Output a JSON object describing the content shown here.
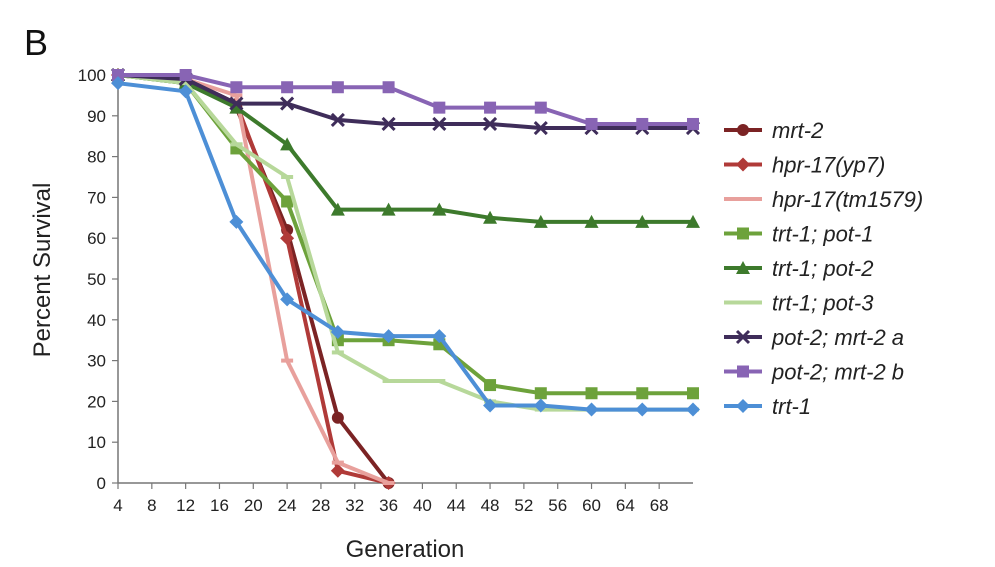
{
  "panel_label": "B",
  "chart_data": {
    "type": "line",
    "xlabel": "Generation",
    "ylabel": "Percent Survival",
    "xlim": [
      4,
      72
    ],
    "ylim": [
      0,
      100
    ],
    "x_ticks": [
      4,
      8,
      12,
      16,
      20,
      24,
      28,
      32,
      36,
      40,
      44,
      48,
      52,
      56,
      60,
      64,
      68
    ],
    "y_ticks": [
      0,
      10,
      20,
      30,
      40,
      50,
      60,
      70,
      80,
      90,
      100
    ],
    "grid": false,
    "legend_position": "right",
    "series": [
      {
        "name": "mrt-2",
        "color": "#7b2324",
        "marker": "circle",
        "points": [
          [
            4,
            100
          ],
          [
            12,
            99
          ],
          [
            18,
            92
          ],
          [
            24,
            62
          ],
          [
            30,
            16
          ],
          [
            36,
            0
          ]
        ]
      },
      {
        "name": "hpr-17(yp7)",
        "color": "#b03a38",
        "marker": "diamond",
        "points": [
          [
            4,
            100
          ],
          [
            12,
            99
          ],
          [
            18,
            93
          ],
          [
            24,
            60
          ],
          [
            30,
            3
          ],
          [
            36,
            0
          ]
        ]
      },
      {
        "name": "hpr-17(tm1579)",
        "color": "#e8a09c",
        "marker": "dash",
        "points": [
          [
            4,
            100
          ],
          [
            12,
            99
          ],
          [
            18,
            95
          ],
          [
            24,
            30
          ],
          [
            30,
            5
          ],
          [
            36,
            0
          ]
        ]
      },
      {
        "name": "trt-1; pot-1",
        "color": "#6da23b",
        "marker": "square",
        "points": [
          [
            4,
            100
          ],
          [
            12,
            98
          ],
          [
            18,
            82
          ],
          [
            24,
            69
          ],
          [
            30,
            35
          ],
          [
            36,
            35
          ],
          [
            42,
            34
          ],
          [
            48,
            24
          ],
          [
            54,
            22
          ],
          [
            60,
            22
          ],
          [
            66,
            22
          ],
          [
            72,
            22
          ]
        ]
      },
      {
        "name": "trt-1; pot-2",
        "color": "#3d7a2c",
        "marker": "triangle",
        "points": [
          [
            4,
            100
          ],
          [
            12,
            98
          ],
          [
            18,
            92
          ],
          [
            24,
            83
          ],
          [
            30,
            67
          ],
          [
            36,
            67
          ],
          [
            42,
            67
          ],
          [
            48,
            65
          ],
          [
            54,
            64
          ],
          [
            60,
            64
          ],
          [
            66,
            64
          ],
          [
            72,
            64
          ]
        ]
      },
      {
        "name": "trt-1; pot-3",
        "color": "#b7d89a",
        "marker": "dash",
        "points": [
          [
            4,
            100
          ],
          [
            12,
            98
          ],
          [
            18,
            83
          ],
          [
            24,
            75
          ],
          [
            30,
            32
          ],
          [
            36,
            25
          ],
          [
            42,
            25
          ],
          [
            48,
            20
          ],
          [
            54,
            18
          ],
          [
            60,
            18
          ],
          [
            66,
            18
          ],
          [
            72,
            18
          ]
        ]
      },
      {
        "name": "pot-2; mrt-2 a",
        "color": "#3f2d5a",
        "marker": "x",
        "points": [
          [
            4,
            100
          ],
          [
            12,
            99
          ],
          [
            18,
            93
          ],
          [
            24,
            93
          ],
          [
            30,
            89
          ],
          [
            36,
            88
          ],
          [
            42,
            88
          ],
          [
            48,
            88
          ],
          [
            54,
            87
          ],
          [
            60,
            87
          ],
          [
            66,
            87
          ],
          [
            72,
            87
          ]
        ]
      },
      {
        "name": "pot-2; mrt-2 b",
        "color": "#8864b4",
        "marker": "square",
        "points": [
          [
            4,
            100
          ],
          [
            12,
            100
          ],
          [
            18,
            97
          ],
          [
            24,
            97
          ],
          [
            30,
            97
          ],
          [
            36,
            97
          ],
          [
            42,
            92
          ],
          [
            48,
            92
          ],
          [
            54,
            92
          ],
          [
            60,
            88
          ],
          [
            66,
            88
          ],
          [
            72,
            88
          ]
        ]
      },
      {
        "name": "trt-1",
        "color": "#4d8fd6",
        "marker": "diamond",
        "points": [
          [
            4,
            98
          ],
          [
            12,
            96
          ],
          [
            18,
            64
          ],
          [
            24,
            45
          ],
          [
            30,
            37
          ],
          [
            36,
            36
          ],
          [
            42,
            36
          ],
          [
            48,
            19
          ],
          [
            54,
            19
          ],
          [
            60,
            18
          ],
          [
            66,
            18
          ],
          [
            72,
            18
          ]
        ]
      }
    ]
  }
}
